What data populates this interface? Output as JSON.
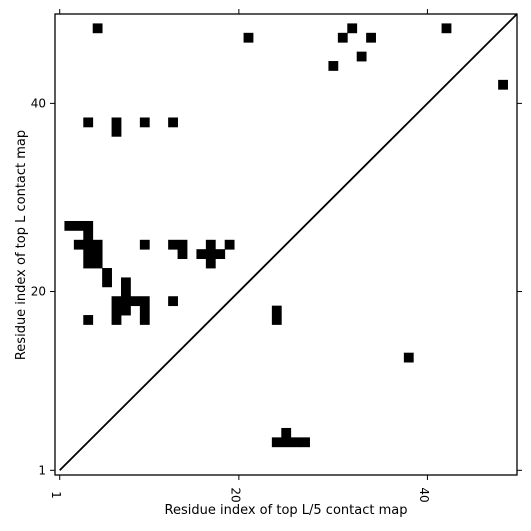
{
  "chart_data": {
    "type": "heatmap",
    "title": "",
    "xlabel": "Residue index of top L/5 contact map",
    "ylabel": "Residue index of top L contact map",
    "xlim": [
      0.5,
      49.5
    ],
    "ylim": [
      0.5,
      49.5
    ],
    "x_ticks": [
      1,
      20,
      40
    ],
    "y_ticks": [
      1,
      20,
      40
    ],
    "x_tick_labels": [
      "1",
      "20",
      "40"
    ],
    "y_tick_labels": [
      "1",
      "20",
      "40"
    ],
    "grid": false,
    "cell_color": "#000000",
    "diagonal": {
      "from": [
        1,
        1
      ],
      "to": [
        49,
        49
      ]
    },
    "upper_points": [
      [
        5,
        48
      ],
      [
        21,
        47
      ],
      [
        32,
        48
      ],
      [
        31,
        47
      ],
      [
        34,
        47
      ],
      [
        33,
        45
      ],
      [
        30,
        44
      ],
      [
        42,
        48
      ],
      [
        48,
        42
      ],
      [
        4,
        38
      ],
      [
        7,
        38
      ],
      [
        7,
        37
      ],
      [
        10,
        38
      ],
      [
        13,
        38
      ],
      [
        2,
        27
      ],
      [
        3,
        27
      ],
      [
        4,
        27
      ],
      [
        4,
        26
      ],
      [
        3,
        25
      ],
      [
        4,
        25
      ],
      [
        5,
        25
      ],
      [
        4,
        24
      ],
      [
        5,
        24
      ],
      [
        4,
        23
      ],
      [
        5,
        23
      ],
      [
        6,
        22
      ],
      [
        6,
        21
      ],
      [
        8,
        21
      ],
      [
        8,
        20
      ],
      [
        7,
        19
      ],
      [
        8,
        19
      ],
      [
        9,
        19
      ],
      [
        10,
        19
      ],
      [
        10,
        18
      ],
      [
        7,
        18
      ],
      [
        8,
        18
      ],
      [
        10,
        17
      ],
      [
        7,
        17
      ],
      [
        4,
        17
      ],
      [
        10,
        25
      ],
      [
        13,
        25
      ],
      [
        14,
        25
      ],
      [
        14,
        24
      ],
      [
        16,
        24
      ],
      [
        17,
        24
      ],
      [
        18,
        24
      ],
      [
        17,
        25
      ],
      [
        17,
        23
      ],
      [
        19,
        25
      ],
      [
        13,
        19
      ]
    ],
    "lower_points": [
      [
        24,
        18
      ],
      [
        24,
        17
      ],
      [
        38,
        13
      ],
      [
        25,
        5
      ],
      [
        24,
        4
      ],
      [
        25,
        4
      ],
      [
        26,
        4
      ],
      [
        27,
        4
      ]
    ]
  }
}
